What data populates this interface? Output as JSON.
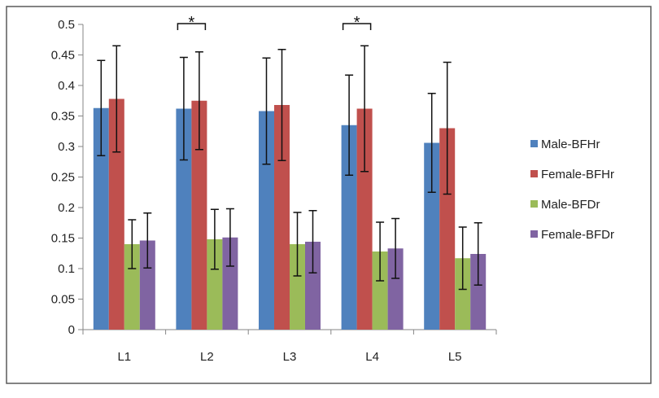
{
  "chart_data": {
    "type": "bar",
    "title": "",
    "xlabel": "",
    "ylabel": "",
    "categories": [
      "L1",
      "L2",
      "L3",
      "L4",
      "L5"
    ],
    "ylim": [
      0,
      0.5
    ],
    "yticks": [
      0,
      0.05,
      0.1,
      0.15,
      0.2,
      0.25,
      0.3,
      0.35,
      0.4,
      0.45,
      0.5
    ],
    "ytick_labels": [
      "0",
      "0.05",
      "0.1",
      "0.15",
      "0.2",
      "0.25",
      "0.3",
      "0.35",
      "0.4",
      "0.45",
      "0.5"
    ],
    "grid": false,
    "legend_position": "right",
    "series": [
      {
        "name": "Male-BFHr",
        "color": "#4f81bd",
        "values": [
          0.363,
          0.362,
          0.358,
          0.335,
          0.306
        ],
        "errors": [
          0.078,
          0.084,
          0.087,
          0.082,
          0.081
        ]
      },
      {
        "name": "Female-BFHr",
        "color": "#c0504d",
        "values": [
          0.378,
          0.375,
          0.368,
          0.362,
          0.33
        ],
        "errors": [
          0.087,
          0.08,
          0.091,
          0.103,
          0.108
        ]
      },
      {
        "name": "Male-BFDr",
        "color": "#9bbb59",
        "values": [
          0.14,
          0.148,
          0.14,
          0.128,
          0.117
        ],
        "errors": [
          0.04,
          0.049,
          0.052,
          0.048,
          0.051
        ]
      },
      {
        "name": "Female-BFDr",
        "color": "#8064a2",
        "values": [
          0.146,
          0.151,
          0.144,
          0.133,
          0.124
        ],
        "errors": [
          0.045,
          0.047,
          0.051,
          0.049,
          0.051
        ]
      }
    ],
    "annotations": [
      {
        "text": "*",
        "category": "L2",
        "series_from": "Male-BFHr",
        "series_to": "Female-BFHr"
      },
      {
        "text": "*",
        "category": "L4",
        "series_from": "Male-BFHr",
        "series_to": "Female-BFHr"
      }
    ]
  }
}
